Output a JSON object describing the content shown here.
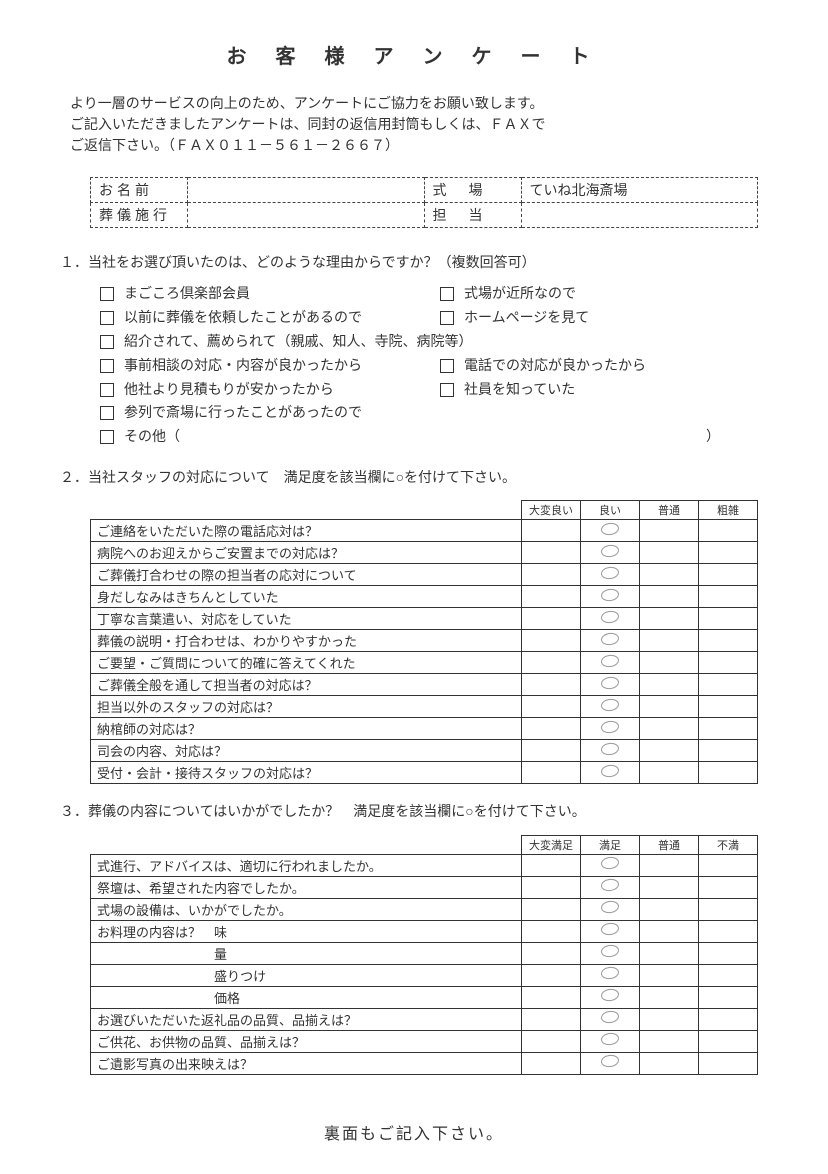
{
  "title": "お 客 様 ア ン ケ ー ト",
  "intro_line1": "より一層のサービスの向上のため、アンケートにご協力をお願い致します。",
  "intro_line2": "ご記入いただきましたアンケートは、同封の返信用封筒もしくは、ＦＡＸで",
  "intro_line3": "ご返信下さい。（ＦＡＸ０１１－５６１－２６６７）",
  "info": {
    "name_label": "お名前",
    "name_value": "",
    "venue_label": "式　場",
    "venue_value": "ていね北海斎場",
    "company_label": "葬儀施行",
    "company_value": "",
    "staff_label": "担　当",
    "staff_value": ""
  },
  "q1": {
    "text": "１．当社をお選び頂いたのは、どのような理由からですか？（複数回答可）",
    "opts_left": [
      "まごころ倶楽部会員",
      "以前に葬儀を依頼したことがあるので",
      "紹介されて、薦められて（親戚、知人、寺院、病院等）",
      "事前相談の対応・内容が良かったから",
      "他社より見積もりが安かったから",
      "参列で斎場に行ったことがあったので",
      "その他（"
    ],
    "opts_right": [
      "式場が近所なので",
      "ホームページを見て",
      "",
      "電話での対応が良かったから",
      "社員を知っていた"
    ],
    "other_close": "）"
  },
  "q2": {
    "text": "２．当社スタッフの対応について　満足度を該当欄に○を付けて下さい。",
    "headers": [
      "大変良い",
      "良い",
      "普通",
      "粗雑"
    ],
    "rows": [
      {
        "label": "ご連絡をいただいた際の電話応対は？",
        "sel": 1
      },
      {
        "label": "病院へのお迎えからご安置までの対応は？",
        "sel": 1
      },
      {
        "label": "ご葬儀打合わせの際の担当者の応対について",
        "sel": 1
      },
      {
        "label": "身だしなみはきちんとしていた",
        "sel": 1
      },
      {
        "label": "丁寧な言葉遣い、対応をしていた",
        "sel": 1
      },
      {
        "label": "葬儀の説明・打合わせは、わかりやすかった",
        "sel": 1
      },
      {
        "label": "ご要望・ご質問について的確に答えてくれた",
        "sel": 1
      },
      {
        "label": "ご葬儀全般を通して担当者の対応は？",
        "sel": 1
      },
      {
        "label": "担当以外のスタッフの対応は？",
        "sel": 1
      },
      {
        "label": "納棺師の対応は？",
        "sel": 1
      },
      {
        "label": "司会の内容、対応は？",
        "sel": 1
      },
      {
        "label": "受付・会計・接待スタッフの対応は？",
        "sel": 1
      }
    ]
  },
  "q3": {
    "text": "３．葬儀の内容についてはいかがでしたか？　満足度を該当欄に○を付けて下さい。",
    "headers": [
      "大変満足",
      "満足",
      "普通",
      "不満"
    ],
    "rows": [
      {
        "label": "式進行、アドバイスは、適切に行われましたか。",
        "sel": 1
      },
      {
        "label": "祭壇は、希望された内容でしたか。",
        "sel": 1
      },
      {
        "label": "式場の設備は、いかがでしたか。",
        "sel": 1
      },
      {
        "label": "お料理の内容は？　味",
        "sel": 1
      },
      {
        "label": "　　　　　　　　　量",
        "sel": 1
      },
      {
        "label": "　　　　　　　　　盛りつけ",
        "sel": 1
      },
      {
        "label": "　　　　　　　　　価格",
        "sel": 1
      },
      {
        "label": "お選びいただいた返礼品の品質、品揃えは？",
        "sel": 1
      },
      {
        "label": "ご供花、お供物の品質、品揃えは？",
        "sel": 1
      },
      {
        "label": "ご遺影写真の出来映えは？",
        "sel": 1
      }
    ]
  },
  "footer": "裏面もご記入下さい。"
}
